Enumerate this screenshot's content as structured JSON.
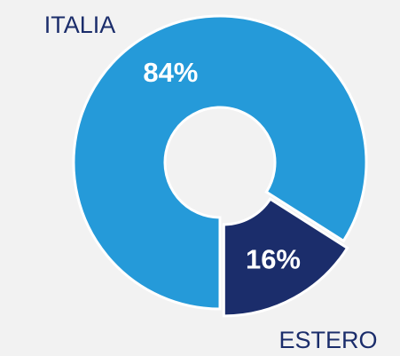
{
  "chart_data": {
    "type": "donut",
    "categories": [
      "ITALIA",
      "ESTERO"
    ],
    "values": [
      84,
      16
    ],
    "value_labels": [
      "84%",
      "16%"
    ],
    "colors": [
      "#259ad9",
      "#1b2d6b"
    ]
  }
}
